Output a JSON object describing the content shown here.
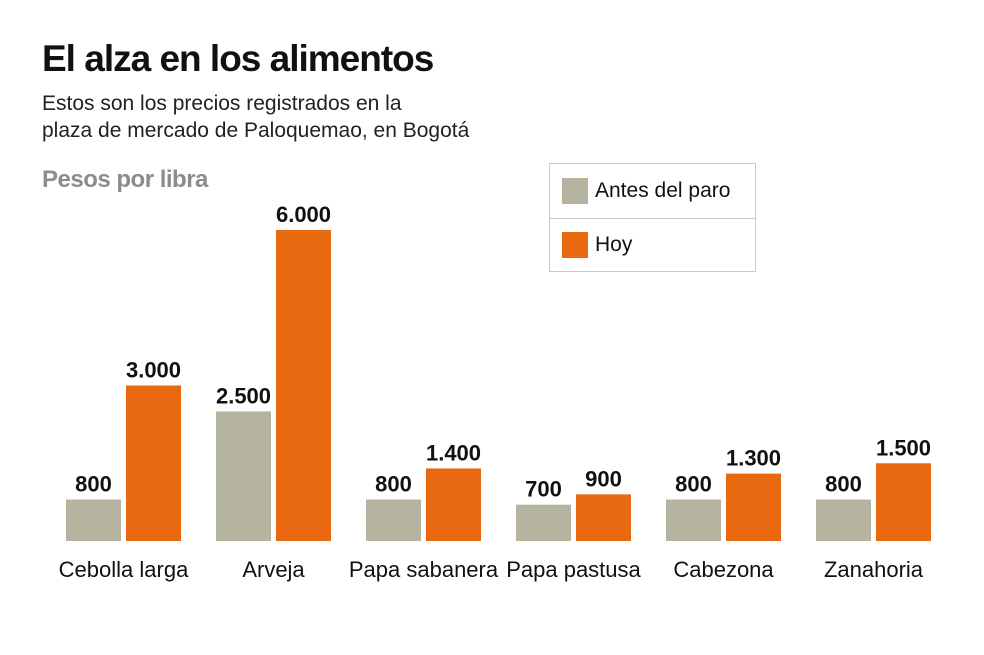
{
  "header": {
    "title": "El alza en los alimentos",
    "subtitle_line1": "Estos son los precios registrados en la",
    "subtitle_line2": "plaza de mercado de Paloquemao, en Bogotá",
    "unit_label": "Pesos por libra"
  },
  "legend": {
    "items": [
      {
        "label": "Antes del paro",
        "color": "#b5b4a1"
      },
      {
        "label": "Hoy",
        "color": "#e8690f"
      }
    ]
  },
  "chart_data": {
    "type": "bar",
    "title": "El alza en los alimentos",
    "ylabel": "Pesos por libra",
    "categories": [
      "Cebolla larga",
      "Arveja",
      "Papa sabanera",
      "Papa pastusa",
      "Cabezona",
      "Zanahoria"
    ],
    "series": [
      {
        "name": "Antes del paro",
        "color": "#b5b4a1",
        "values": [
          800,
          2500,
          800,
          700,
          800,
          800
        ],
        "labels": [
          "800",
          "2.500",
          "800",
          "700",
          "800",
          "800"
        ]
      },
      {
        "name": "Hoy",
        "color": "#e8690f",
        "values": [
          3000,
          6000,
          1400,
          900,
          1300,
          1500
        ],
        "labels": [
          "3.000",
          "6.000",
          "1.400",
          "900",
          "1.300",
          "1.500"
        ]
      }
    ],
    "ylim": [
      0,
      6000
    ],
    "grid": false,
    "legend_position": "top-right"
  }
}
